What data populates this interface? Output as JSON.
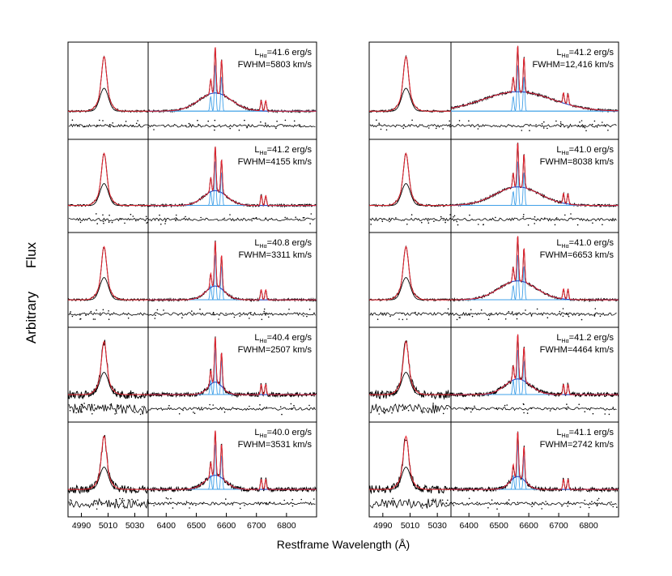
{
  "chart_data": {
    "type": "line",
    "ylabel_words": [
      "Arbitrary",
      "Flux"
    ],
    "xlabel": "Restframe Wavelength (Å)",
    "left_axis_ticks": [
      "4990",
      "5010",
      "5030"
    ],
    "right_axis_ticks": [
      "6400",
      "6500",
      "6600",
      "6700",
      "6800"
    ],
    "left_axis_range": [
      4980,
      5040
    ],
    "right_axis_range": [
      6340,
      6900
    ],
    "series_colors": {
      "data": "#000000",
      "model": "#e8232f",
      "broad_component": "#1f3fbf",
      "narrow_components": "#3fa0e8",
      "residuals": "#000000"
    },
    "panels": [
      {
        "column": 1,
        "row": 1,
        "lum": "L",
        "lum_sub": "Hα",
        "lum_value": "=41.6 erg/s",
        "fwhm": "FWHM=5803 km/s",
        "fwhm_kms": 5803
      },
      {
        "column": 1,
        "row": 2,
        "lum": "L",
        "lum_sub": "Hα",
        "lum_value": "=41.2 erg/s",
        "fwhm": "FWHM=4155 km/s",
        "fwhm_kms": 4155
      },
      {
        "column": 1,
        "row": 3,
        "lum": "L",
        "lum_sub": "Hα",
        "lum_value": "=40.8 erg/s",
        "fwhm": "FWHM=3311 km/s",
        "fwhm_kms": 3311
      },
      {
        "column": 1,
        "row": 4,
        "lum": "L",
        "lum_sub": "Hα",
        "lum_value": "=40.4 erg/s",
        "fwhm": "FWHM=2507 km/s",
        "fwhm_kms": 2507
      },
      {
        "column": 1,
        "row": 5,
        "lum": "L",
        "lum_sub": "Hα",
        "lum_value": "=40.0 erg/s",
        "fwhm": "FWHM=3531 km/s",
        "fwhm_kms": 3531
      },
      {
        "column": 2,
        "row": 1,
        "lum": "L",
        "lum_sub": "Hα",
        "lum_value": "=41.2 erg/s",
        "fwhm": "FWHM=12,416 km/s",
        "fwhm_kms": 12416
      },
      {
        "column": 2,
        "row": 2,
        "lum": "L",
        "lum_sub": "Hα",
        "lum_value": "=41.0 erg/s",
        "fwhm": "FWHM=8038 km/s",
        "fwhm_kms": 8038
      },
      {
        "column": 2,
        "row": 3,
        "lum": "L",
        "lum_sub": "Hα",
        "lum_value": "=41.0 erg/s",
        "fwhm": "FWHM=6653 km/s",
        "fwhm_kms": 6653
      },
      {
        "column": 2,
        "row": 4,
        "lum": "L",
        "lum_sub": "Hα",
        "lum_value": "=41.2 erg/s",
        "fwhm": "FWHM=4464 km/s",
        "fwhm_kms": 4464
      },
      {
        "column": 2,
        "row": 5,
        "lum": "L",
        "lum_sub": "Hα",
        "lum_value": "=41.1 erg/s",
        "fwhm": "FWHM=2742 km/s",
        "fwhm_kms": 2742
      }
    ]
  }
}
